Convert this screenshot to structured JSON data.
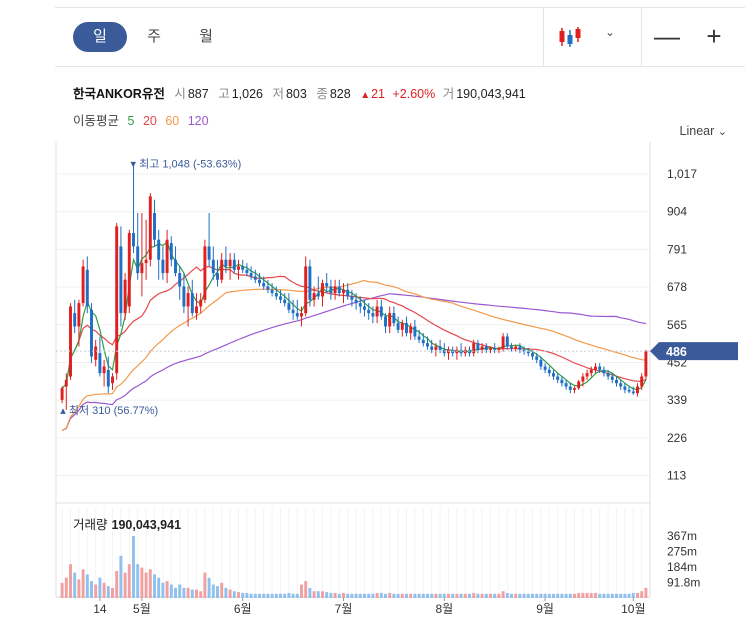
{
  "toolbar": {
    "tabs": [
      "일",
      "주",
      "월"
    ],
    "active_tab": 0,
    "zoom_out": "—",
    "zoom_in": "+"
  },
  "stock": {
    "name": "한국ANKOR유전",
    "open_label": "시",
    "open": "887",
    "high_label": "고",
    "high": "1,026",
    "low_label": "저",
    "low": "803",
    "close_label": "종",
    "close": "828",
    "change_arrow": "▲",
    "change": "21",
    "change_pct": "+2.60%",
    "volume_label": "거",
    "volume": "190,043,941"
  },
  "ma": {
    "label": "이동평균",
    "periods": [
      {
        "value": "5",
        "color": "#2e9e44"
      },
      {
        "value": "20",
        "color": "#e8474b"
      },
      {
        "value": "60",
        "color": "#f29a4a"
      },
      {
        "value": "120",
        "color": "#9b59d0"
      }
    ]
  },
  "scale_button": "Linear",
  "colors": {
    "up": "#e02020",
    "down": "#1f6fc4",
    "current_badge": "#3b5a9a",
    "vol_up": "#f0a0a0",
    "vol_down": "#8fc0ee"
  },
  "chart_data": {
    "type": "candlestick",
    "price_axis": {
      "ticks": [
        "1,017",
        "904",
        "791",
        "678",
        "565",
        "452",
        "339",
        "226",
        "113"
      ],
      "tick_values": [
        1017,
        904,
        791,
        678,
        565,
        452,
        339,
        226,
        113
      ]
    },
    "volume_axis": {
      "ticks": [
        "367m",
        "275m",
        "184m",
        "91.8m"
      ],
      "tick_values": [
        367,
        275,
        184,
        91.8
      ]
    },
    "x_ticks": [
      "14",
      "5월",
      "6월",
      "7월",
      "8월",
      "9월",
      "10월"
    ],
    "x_tick_index": [
      9,
      19,
      43,
      67,
      91,
      115,
      136
    ],
    "current_price": "486",
    "current_value": 486,
    "high_marker": {
      "label": "최고",
      "text": "1,048 (-53.63%)",
      "value": 1048,
      "index": 17
    },
    "low_marker": {
      "label": "최저",
      "text": "310 (56.77%)",
      "value": 310,
      "index": 1
    },
    "volume_title": "거래량",
    "volume_value": "190,043,941",
    "candles": [
      [
        340,
        380,
        330,
        375,
        90
      ],
      [
        380,
        420,
        310,
        400,
        120
      ],
      [
        410,
        630,
        400,
        620,
        200
      ],
      [
        600,
        640,
        540,
        560,
        150
      ],
      [
        560,
        640,
        500,
        630,
        110
      ],
      [
        630,
        760,
        620,
        740,
        170
      ],
      [
        730,
        770,
        600,
        620,
        140
      ],
      [
        610,
        630,
        450,
        470,
        100
      ],
      [
        460,
        520,
        440,
        500,
        80
      ],
      [
        480,
        530,
        410,
        420,
        120
      ],
      [
        420,
        460,
        380,
        440,
        90
      ],
      [
        430,
        470,
        360,
        380,
        70
      ],
      [
        390,
        420,
        370,
        410,
        60
      ],
      [
        420,
        870,
        400,
        860,
        160
      ],
      [
        800,
        860,
        560,
        600,
        250
      ],
      [
        600,
        720,
        580,
        700,
        150
      ],
      [
        620,
        850,
        600,
        840,
        200
      ],
      [
        840,
        1048,
        780,
        800,
        367
      ],
      [
        800,
        900,
        700,
        720,
        200
      ],
      [
        720,
        900,
        650,
        750,
        180
      ],
      [
        750,
        880,
        700,
        760,
        150
      ],
      [
        760,
        960,
        740,
        950,
        170
      ],
      [
        900,
        940,
        800,
        820,
        140
      ],
      [
        820,
        850,
        700,
        760,
        120
      ],
      [
        760,
        800,
        700,
        720,
        90
      ],
      [
        720,
        850,
        690,
        820,
        100
      ],
      [
        810,
        830,
        740,
        760,
        80
      ],
      [
        760,
        800,
        710,
        720,
        60
      ],
      [
        720,
        740,
        640,
        680,
        80
      ],
      [
        680,
        720,
        600,
        620,
        60
      ],
      [
        620,
        680,
        560,
        660,
        60
      ],
      [
        660,
        700,
        590,
        600,
        50
      ],
      [
        600,
        660,
        580,
        620,
        50
      ],
      [
        620,
        660,
        600,
        640,
        40
      ],
      [
        640,
        820,
        630,
        800,
        150
      ],
      [
        800,
        900,
        740,
        760,
        120
      ],
      [
        760,
        800,
        700,
        720,
        80
      ],
      [
        720,
        760,
        680,
        700,
        70
      ],
      [
        700,
        780,
        690,
        760,
        90
      ],
      [
        760,
        800,
        720,
        740,
        60
      ],
      [
        740,
        780,
        700,
        760,
        50
      ],
      [
        760,
        780,
        720,
        730,
        40
      ],
      [
        730,
        760,
        700,
        740,
        35
      ],
      [
        740,
        760,
        720,
        730,
        30
      ],
      [
        730,
        750,
        710,
        720,
        30
      ],
      [
        720,
        740,
        700,
        710,
        25
      ],
      [
        710,
        730,
        690,
        700,
        25
      ],
      [
        700,
        720,
        680,
        690,
        25
      ],
      [
        690,
        710,
        670,
        680,
        25
      ],
      [
        680,
        700,
        660,
        670,
        25
      ],
      [
        670,
        690,
        650,
        660,
        25
      ],
      [
        660,
        680,
        640,
        650,
        25
      ],
      [
        650,
        670,
        630,
        640,
        25
      ],
      [
        640,
        660,
        620,
        630,
        25
      ],
      [
        630,
        660,
        600,
        610,
        30
      ],
      [
        610,
        640,
        580,
        600,
        25
      ],
      [
        600,
        640,
        580,
        590,
        25
      ],
      [
        590,
        620,
        560,
        600,
        80
      ],
      [
        600,
        770,
        590,
        740,
        100
      ],
      [
        740,
        760,
        620,
        640,
        60
      ],
      [
        640,
        680,
        620,
        660,
        40
      ],
      [
        660,
        710,
        640,
        650,
        40
      ],
      [
        650,
        700,
        620,
        690,
        40
      ],
      [
        690,
        720,
        660,
        680,
        35
      ],
      [
        680,
        700,
        640,
        660,
        30
      ],
      [
        660,
        700,
        640,
        680,
        30
      ],
      [
        680,
        700,
        650,
        660,
        25
      ],
      [
        660,
        690,
        630,
        670,
        30
      ],
      [
        670,
        690,
        640,
        650,
        25
      ],
      [
        650,
        670,
        620,
        640,
        25
      ],
      [
        640,
        660,
        610,
        630,
        25
      ],
      [
        630,
        650,
        600,
        620,
        25
      ],
      [
        620,
        640,
        590,
        610,
        25
      ],
      [
        610,
        630,
        580,
        600,
        25
      ],
      [
        600,
        620,
        570,
        590,
        25
      ],
      [
        590,
        640,
        570,
        620,
        30
      ],
      [
        620,
        640,
        580,
        590,
        30
      ],
      [
        590,
        600,
        540,
        560,
        25
      ],
      [
        560,
        620,
        540,
        600,
        30
      ],
      [
        600,
        620,
        560,
        570,
        25
      ],
      [
        570,
        590,
        540,
        550,
        25
      ],
      [
        550,
        580,
        530,
        570,
        25
      ],
      [
        570,
        590,
        530,
        540,
        25
      ],
      [
        540,
        570,
        520,
        560,
        25
      ],
      [
        560,
        580,
        520,
        530,
        25
      ],
      [
        530,
        550,
        510,
        520,
        25
      ],
      [
        520,
        540,
        500,
        510,
        25
      ],
      [
        510,
        530,
        490,
        500,
        25
      ],
      [
        500,
        520,
        480,
        490,
        25
      ],
      [
        490,
        510,
        470,
        500,
        25
      ],
      [
        500,
        520,
        480,
        490,
        25
      ],
      [
        490,
        510,
        470,
        480,
        25
      ],
      [
        480,
        500,
        460,
        490,
        25
      ],
      [
        490,
        500,
        470,
        480,
        25
      ],
      [
        480,
        500,
        460,
        490,
        25
      ],
      [
        490,
        510,
        470,
        480,
        25
      ],
      [
        480,
        500,
        470,
        490,
        25
      ],
      [
        490,
        500,
        470,
        480,
        25
      ],
      [
        480,
        520,
        470,
        510,
        30
      ],
      [
        510,
        520,
        480,
        490,
        25
      ],
      [
        490,
        510,
        480,
        500,
        25
      ],
      [
        500,
        510,
        480,
        490,
        25
      ],
      [
        490,
        500,
        480,
        495,
        25
      ],
      [
        495,
        510,
        480,
        490,
        25
      ],
      [
        490,
        500,
        480,
        495,
        25
      ],
      [
        495,
        540,
        485,
        530,
        40
      ],
      [
        530,
        540,
        490,
        500,
        30
      ],
      [
        500,
        510,
        485,
        495,
        25
      ],
      [
        495,
        505,
        485,
        500,
        25
      ],
      [
        500,
        510,
        480,
        490,
        25
      ],
      [
        490,
        500,
        475,
        485,
        25
      ],
      [
        485,
        495,
        470,
        480,
        25
      ],
      [
        480,
        490,
        460,
        470,
        25
      ],
      [
        470,
        480,
        450,
        460,
        25
      ],
      [
        460,
        470,
        430,
        440,
        25
      ],
      [
        440,
        450,
        420,
        430,
        25
      ],
      [
        430,
        440,
        410,
        420,
        25
      ],
      [
        420,
        430,
        400,
        410,
        25
      ],
      [
        410,
        420,
        390,
        400,
        25
      ],
      [
        400,
        410,
        380,
        390,
        25
      ],
      [
        390,
        400,
        370,
        380,
        25
      ],
      [
        380,
        390,
        360,
        370,
        25
      ],
      [
        370,
        380,
        360,
        375,
        25
      ],
      [
        375,
        400,
        370,
        395,
        30
      ],
      [
        395,
        420,
        380,
        410,
        30
      ],
      [
        410,
        430,
        400,
        420,
        30
      ],
      [
        420,
        440,
        410,
        430,
        30
      ],
      [
        430,
        450,
        420,
        440,
        30
      ],
      [
        440,
        450,
        420,
        430,
        25
      ],
      [
        430,
        440,
        410,
        420,
        25
      ],
      [
        420,
        430,
        400,
        410,
        25
      ],
      [
        410,
        420,
        390,
        400,
        25
      ],
      [
        400,
        410,
        380,
        390,
        25
      ],
      [
        390,
        400,
        370,
        380,
        25
      ],
      [
        380,
        390,
        360,
        370,
        25
      ],
      [
        370,
        380,
        360,
        365,
        25
      ],
      [
        365,
        380,
        355,
        360,
        30
      ],
      [
        360,
        390,
        350,
        380,
        30
      ],
      [
        380,
        420,
        370,
        410,
        40
      ],
      [
        410,
        490,
        400,
        486,
        60
      ]
    ]
  }
}
